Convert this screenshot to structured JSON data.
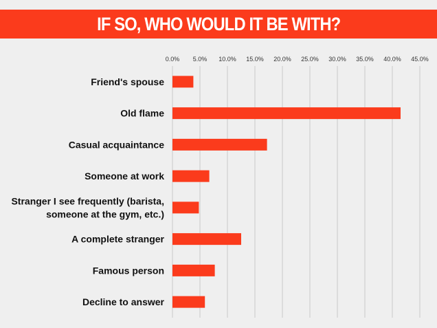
{
  "title": "IF SO, WHO WOULD IT BE WITH?",
  "colors": {
    "banner": "#fb3b1c",
    "bar": "#fb3b1c",
    "background": "#efefef",
    "grid": "#c8c8c8"
  },
  "chart_data": {
    "type": "bar",
    "orientation": "horizontal",
    "title": "IF SO, WHO WOULD IT BE WITH?",
    "xlim": [
      0,
      45
    ],
    "x_ticks": [
      "0.0%",
      "5.0%",
      "10.0%",
      "15.0%",
      "20.0%",
      "25.0%",
      "30.0%",
      "35.0%",
      "40.0%",
      "45.0%"
    ],
    "x_axis_position": "top",
    "grid": true,
    "categories": [
      [
        "Friend's spouse"
      ],
      [
        "Old flame"
      ],
      [
        "Casual acquaintance"
      ],
      [
        "Someone at work"
      ],
      [
        "Stranger I see frequently (barista,",
        "someone at the gym, etc.)"
      ],
      [
        "A complete stranger"
      ],
      [
        "Famous person"
      ],
      [
        "Decline to answer"
      ]
    ],
    "values": [
      3.8,
      41.5,
      17.2,
      6.7,
      4.8,
      12.5,
      7.7,
      5.9
    ]
  }
}
